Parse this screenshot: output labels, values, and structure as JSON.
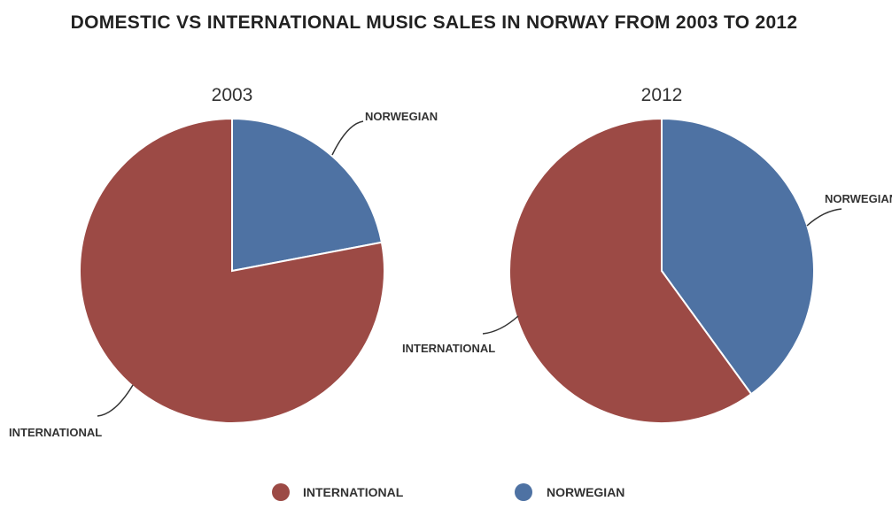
{
  "chart_data": {
    "type": "pie",
    "title": "DOMESTIC VS INTERNATIONAL MUSIC SALES IN NORWAY FROM 2003 TO 2012",
    "legend": {
      "placement": "bottom",
      "entries": [
        {
          "name": "INTERNATIONAL",
          "color": "#9c4a45"
        },
        {
          "name": "NORWEGIAN",
          "color": "#4e72a3"
        }
      ]
    },
    "pies": [
      {
        "title": "2003",
        "slices": [
          {
            "name": "NORWEGIAN",
            "value": 22,
            "color": "#4e72a3"
          },
          {
            "name": "INTERNATIONAL",
            "value": 78,
            "color": "#9c4a45"
          }
        ]
      },
      {
        "title": "2012",
        "slices": [
          {
            "name": "NORWEGIAN",
            "value": 40,
            "color": "#4e72a3"
          },
          {
            "name": "INTERNATIONAL",
            "value": 60,
            "color": "#9c4a45"
          }
        ]
      }
    ]
  }
}
